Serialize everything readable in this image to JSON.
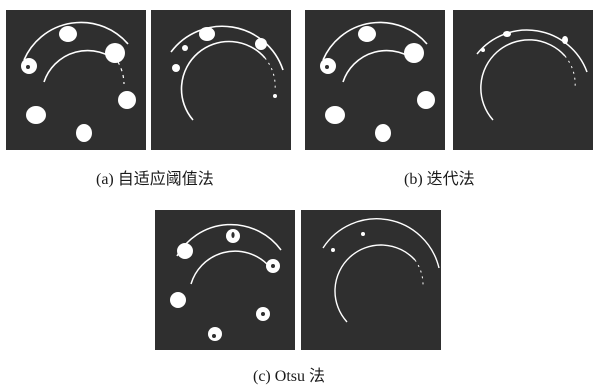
{
  "captions": {
    "a": "(a) 自适应阈值法",
    "b": "(b) 迭代法",
    "c": "(c) Otsu 法"
  },
  "colors": {
    "panel_background": "#2f2f2f",
    "foreground": "#ffffff",
    "page_background": "#ffffff"
  }
}
